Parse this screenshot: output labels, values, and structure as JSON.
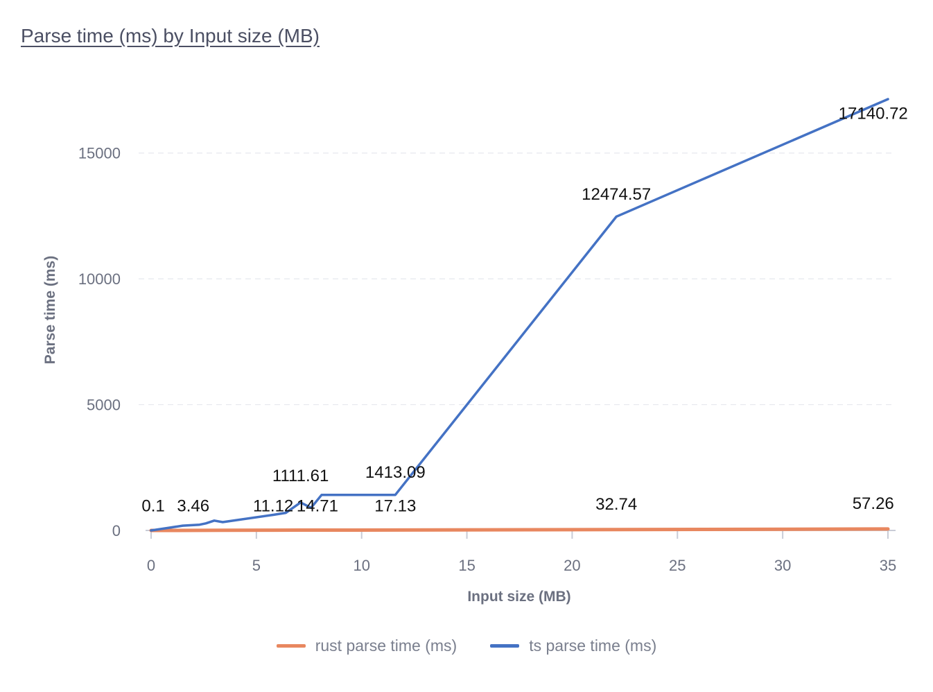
{
  "chart_data": {
    "type": "line",
    "title": "Parse time (ms) by Input size (MB)",
    "xlabel": "Input size (MB)",
    "ylabel": "Parse time (ms)",
    "xlim": [
      0,
      35
    ],
    "ylim": [
      0,
      17500
    ],
    "x_ticks": [
      0,
      5,
      10,
      15,
      20,
      25,
      30,
      35
    ],
    "y_ticks": [
      0,
      5000,
      10000,
      15000
    ],
    "grid": true,
    "legend": "bottom",
    "series": [
      {
        "name": "rust parse time (ms)",
        "color": "#e8875f",
        "x": [
          0,
          0.8,
          2.3,
          3.4,
          5.8,
          7.1,
          8.1,
          11.6,
          22.1,
          35
        ],
        "values": [
          0.1,
          1.2,
          3.46,
          5.9,
          11.12,
          12.5,
          14.71,
          17.13,
          32.74,
          57.26
        ]
      },
      {
        "name": "ts parse time (ms)",
        "color": "#4472c4",
        "x": [
          0,
          0.8,
          1.5,
          2.3,
          2.6,
          3.0,
          3.4,
          5.8,
          6.4,
          7.1,
          7.6,
          8.1,
          11.6,
          22.1,
          35
        ],
        "values": [
          0,
          100,
          190,
          230,
          280,
          390,
          330,
          620,
          700,
          1111.61,
          900,
          1413.09,
          1413.09,
          12474.57,
          17140.72
        ]
      }
    ],
    "data_labels": [
      {
        "text": "0.1",
        "x": 0.1,
        "y": 760
      },
      {
        "text": "3.46",
        "x": 2.0,
        "y": 760
      },
      {
        "text": "11.12",
        "x": 5.8,
        "y": 760
      },
      {
        "text": "14.71",
        "x": 7.9,
        "y": 760
      },
      {
        "text": "17.13",
        "x": 11.6,
        "y": 760
      },
      {
        "text": "32.74",
        "x": 22.1,
        "y": 820
      },
      {
        "text": "57.26",
        "x": 34.3,
        "y": 860
      },
      {
        "text": "1111.61",
        "x": 7.1,
        "y": 1950
      },
      {
        "text": "1413.09",
        "x": 11.6,
        "y": 2100
      },
      {
        "text": "12474.57",
        "x": 22.1,
        "y": 13150
      },
      {
        "text": "17140.72",
        "x": 34.3,
        "y": 16350
      }
    ]
  }
}
